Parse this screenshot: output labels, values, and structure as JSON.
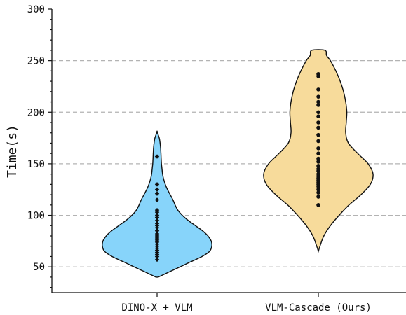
{
  "chart_data": {
    "type": "violin",
    "title": "",
    "xlabel": "",
    "ylabel": "Time(s)",
    "ylim": [
      25,
      300
    ],
    "yticks": [
      50,
      100,
      150,
      200,
      250,
      300
    ],
    "grid": {
      "y": true,
      "style": "dashed",
      "color": "#b3b3b3"
    },
    "categories": [
      "DINO-X + VLM",
      "VLM-Cascade (Ours)"
    ],
    "series": [
      {
        "color": "#87d4fa",
        "marker": "diamond",
        "range": [
          40,
          181
        ],
        "density": [
          [
            40,
            0.02
          ],
          [
            45,
            0.22
          ],
          [
            50,
            0.42
          ],
          [
            55,
            0.62
          ],
          [
            60,
            0.82
          ],
          [
            65,
            0.96
          ],
          [
            70,
            1.0
          ],
          [
            75,
            0.99
          ],
          [
            80,
            0.93
          ],
          [
            85,
            0.83
          ],
          [
            90,
            0.7
          ],
          [
            95,
            0.57
          ],
          [
            100,
            0.46
          ],
          [
            105,
            0.38
          ],
          [
            110,
            0.33
          ],
          [
            115,
            0.29
          ],
          [
            120,
            0.24
          ],
          [
            125,
            0.19
          ],
          [
            130,
            0.15
          ],
          [
            135,
            0.12
          ],
          [
            140,
            0.1
          ],
          [
            145,
            0.09
          ],
          [
            150,
            0.08
          ],
          [
            155,
            0.075
          ],
          [
            160,
            0.07
          ],
          [
            165,
            0.065
          ],
          [
            170,
            0.055
          ],
          [
            175,
            0.04
          ],
          [
            181,
            0.0
          ]
        ],
        "points": [
          57,
          60,
          62,
          64,
          66,
          68,
          70,
          72,
          74,
          76,
          78,
          80,
          82,
          85,
          88,
          90,
          92,
          95,
          98,
          100,
          103,
          105,
          115,
          121,
          125,
          130,
          157
        ]
      },
      {
        "color": "#f7db9b",
        "marker": "circle",
        "range": [
          65,
          260
        ],
        "density": [
          [
            65,
            0.0
          ],
          [
            70,
            0.03
          ],
          [
            80,
            0.1
          ],
          [
            90,
            0.22
          ],
          [
            100,
            0.38
          ],
          [
            110,
            0.56
          ],
          [
            120,
            0.78
          ],
          [
            130,
            0.95
          ],
          [
            140,
            1.0
          ],
          [
            150,
            0.91
          ],
          [
            160,
            0.72
          ],
          [
            170,
            0.55
          ],
          [
            180,
            0.5
          ],
          [
            190,
            0.51
          ],
          [
            200,
            0.52
          ],
          [
            210,
            0.5
          ],
          [
            220,
            0.46
          ],
          [
            230,
            0.4
          ],
          [
            240,
            0.32
          ],
          [
            250,
            0.22
          ],
          [
            255,
            0.15
          ],
          [
            260,
            0.12
          ]
        ],
        "points": [
          110,
          118,
          122,
          125,
          128,
          130,
          132,
          134,
          136,
          138,
          140,
          143,
          145,
          148,
          152,
          155,
          160,
          165,
          172,
          178,
          185,
          190,
          196,
          200,
          207,
          210,
          215,
          222,
          235,
          237
        ]
      }
    ]
  }
}
